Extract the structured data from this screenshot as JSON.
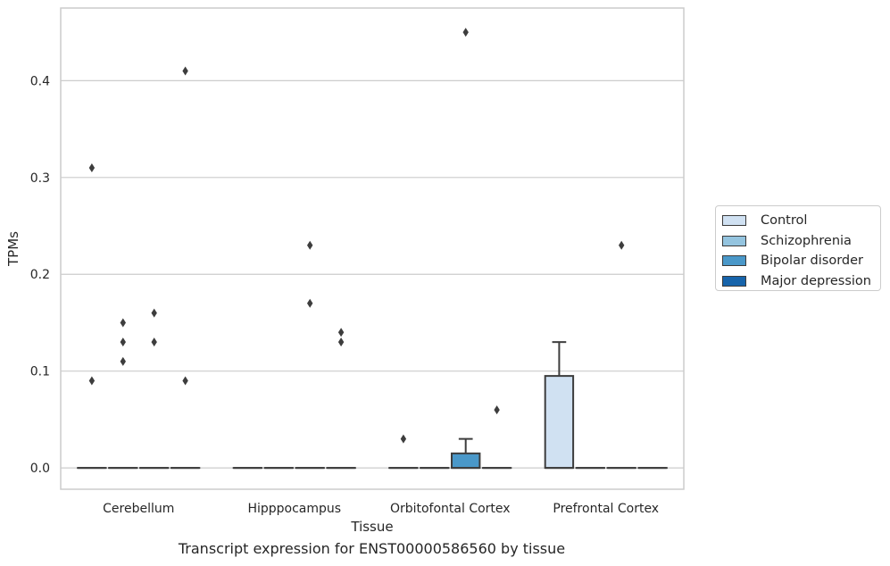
{
  "colors": {
    "background": "#ffffff",
    "grid": "#cccccc",
    "frame": "#cccccc",
    "box_edge": "#3d3d3d",
    "text": "#262626"
  },
  "caption": "Transcript expression for ENST00000586560 by tissue",
  "legend": {
    "placement": "right",
    "items": [
      {
        "label": "Control",
        "color": "#d0e1f2"
      },
      {
        "label": "Schizophrenia",
        "color": "#94c4df"
      },
      {
        "label": "Bipolar disorder",
        "color": "#4a98c9"
      },
      {
        "label": "Major depression",
        "color": "#1764ab"
      }
    ]
  },
  "chart_data": {
    "type": "box",
    "xlabel": "Tissue",
    "ylabel": "TPMs",
    "ylim": [
      -0.022,
      0.475
    ],
    "yticks": [
      0.0,
      0.1,
      0.2,
      0.3,
      0.4
    ],
    "ytick_labels": [
      "0.0",
      "0.1",
      "0.2",
      "0.3",
      "0.4"
    ],
    "grid": "horizontal",
    "categories": [
      "Cerebellum",
      "Hipppocampus",
      "Orbitofontal Cortex",
      "Prefrontal Cortex"
    ],
    "series": [
      {
        "name": "Control",
        "boxes": [
          {
            "q1": 0,
            "median": 0,
            "q3": 0,
            "whisker_low": 0,
            "whisker_high": 0,
            "fliers": [
              0.31,
              0.09
            ]
          },
          {
            "q1": 0,
            "median": 0,
            "q3": 0,
            "whisker_low": 0,
            "whisker_high": 0,
            "fliers": []
          },
          {
            "q1": 0,
            "median": 0,
            "q3": 0,
            "whisker_low": 0,
            "whisker_high": 0,
            "fliers": [
              0.03
            ]
          },
          {
            "q1": 0,
            "median": 0,
            "q3": 0.095,
            "whisker_low": 0,
            "whisker_high": 0.13,
            "fliers": []
          }
        ]
      },
      {
        "name": "Schizophrenia",
        "boxes": [
          {
            "q1": 0,
            "median": 0,
            "q3": 0,
            "whisker_low": 0,
            "whisker_high": 0,
            "fliers": [
              0.15,
              0.13,
              0.11
            ]
          },
          {
            "q1": 0,
            "median": 0,
            "q3": 0,
            "whisker_low": 0,
            "whisker_high": 0,
            "fliers": []
          },
          {
            "q1": 0,
            "median": 0,
            "q3": 0,
            "whisker_low": 0,
            "whisker_high": 0,
            "fliers": []
          },
          {
            "q1": 0,
            "median": 0,
            "q3": 0,
            "whisker_low": 0,
            "whisker_high": 0,
            "fliers": []
          }
        ]
      },
      {
        "name": "Bipolar disorder",
        "boxes": [
          {
            "q1": 0,
            "median": 0,
            "q3": 0,
            "whisker_low": 0,
            "whisker_high": 0,
            "fliers": [
              0.16,
              0.13
            ]
          },
          {
            "q1": 0,
            "median": 0,
            "q3": 0,
            "whisker_low": 0,
            "whisker_high": 0,
            "fliers": [
              0.23,
              0.17
            ]
          },
          {
            "q1": 0,
            "median": 0,
            "q3": 0.015,
            "whisker_low": 0,
            "whisker_high": 0.03,
            "fliers": [
              0.45
            ]
          },
          {
            "q1": 0,
            "median": 0,
            "q3": 0,
            "whisker_low": 0,
            "whisker_high": 0,
            "fliers": [
              0.23
            ]
          }
        ]
      },
      {
        "name": "Major depression",
        "boxes": [
          {
            "q1": 0,
            "median": 0,
            "q3": 0,
            "whisker_low": 0,
            "whisker_high": 0,
            "fliers": [
              0.41,
              0.09
            ]
          },
          {
            "q1": 0,
            "median": 0,
            "q3": 0,
            "whisker_low": 0,
            "whisker_high": 0,
            "fliers": [
              0.14,
              0.13
            ]
          },
          {
            "q1": 0,
            "median": 0,
            "q3": 0,
            "whisker_low": 0,
            "whisker_high": 0,
            "fliers": [
              0.06
            ]
          },
          {
            "q1": 0,
            "median": 0,
            "q3": 0,
            "whisker_low": 0,
            "whisker_high": 0,
            "fliers": []
          }
        ]
      }
    ]
  }
}
